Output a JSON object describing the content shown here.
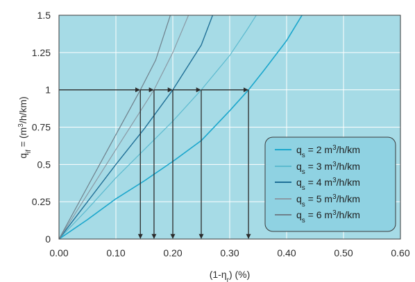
{
  "chart_data": {
    "type": "line",
    "xlabel": "(1-η",
    "xlabel_sub": "r",
    "xlabel_tail": ") (%)",
    "ylabel_main": "q",
    "ylabel_sub": "if",
    "ylabel_tail": " = (m",
    "ylabel_sup": "3",
    "ylabel_end": "/h/km)",
    "xlim": [
      0,
      0.6
    ],
    "ylim": [
      0,
      1.5
    ],
    "x_ticks": [
      "0.00",
      "0.10",
      "0.20",
      "0.30",
      "0.40",
      "0.50",
      "0.60"
    ],
    "y_ticks": [
      "0",
      "0.25",
      "0.5",
      "0.75",
      "1",
      "1.25",
      "1.5"
    ],
    "grid": true,
    "plot_background": "#a6dbe6",
    "legend_position": "bottom-right",
    "series": [
      {
        "name_main": "q",
        "name_sub": "s",
        "name_tail": " = 2 m",
        "name_sup": "3",
        "name_end": "/h/km",
        "color": "#1aa6cc",
        "width": 1.6,
        "x": [
          0,
          0.05,
          0.1,
          0.15,
          0.2,
          0.25,
          0.3,
          0.333,
          0.36,
          0.4,
          0.435
        ],
        "y": [
          0,
          0.13,
          0.27,
          0.39,
          0.52,
          0.66,
          0.86,
          1.0,
          1.13,
          1.33,
          1.55
        ]
      },
      {
        "name_main": "q",
        "name_sub": "s",
        "name_tail": " = 3 m",
        "name_sup": "3",
        "name_end": "/h/km",
        "color": "#5cbacf",
        "width": 1.2,
        "x": [
          0,
          0.05,
          0.1,
          0.15,
          0.2,
          0.25,
          0.3,
          0.33,
          0.355
        ],
        "y": [
          0,
          0.2,
          0.41,
          0.6,
          0.79,
          1.0,
          1.23,
          1.4,
          1.55
        ]
      },
      {
        "name_main": "q",
        "name_sub": "s",
        "name_tail": " = 4 m",
        "name_sup": "3",
        "name_end": "/h/km",
        "color": "#1f6f96",
        "width": 1.4,
        "x": [
          0,
          0.05,
          0.1,
          0.15,
          0.2,
          0.25,
          0.275
        ],
        "y": [
          0,
          0.25,
          0.5,
          0.74,
          1.0,
          1.3,
          1.55
        ]
      },
      {
        "name_main": "q",
        "name_sub": "s",
        "name_tail": " = 5 m",
        "name_sup": "3",
        "name_end": "/h/km",
        "color": "#8a99a4",
        "width": 1.2,
        "x": [
          0,
          0.05,
          0.1,
          0.167,
          0.2,
          0.233
        ],
        "y": [
          0,
          0.3,
          0.6,
          1.0,
          1.25,
          1.55
        ]
      },
      {
        "name_main": "q",
        "name_sub": "s",
        "name_tail": " = 6 m",
        "name_sup": "3",
        "name_end": "/h/km",
        "color": "#6e7f8a",
        "width": 1.2,
        "x": [
          0,
          0.05,
          0.1,
          0.143,
          0.17,
          0.2
        ],
        "y": [
          0,
          0.35,
          0.7,
          1.0,
          1.2,
          1.55
        ]
      }
    ],
    "reference_line": {
      "y": 1.0,
      "x_from": 0,
      "x_to": 0.333,
      "color": "#2b2b2b"
    },
    "drop_lines_x": [
      0.143,
      0.167,
      0.2,
      0.25,
      0.333
    ],
    "arrow_color": "#2b2b2b"
  }
}
